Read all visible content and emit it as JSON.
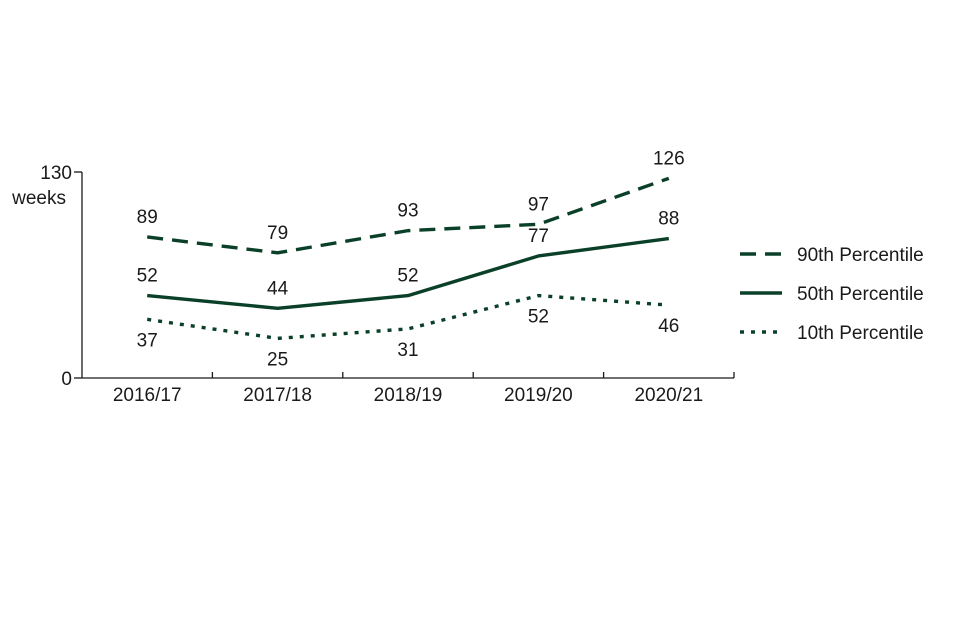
{
  "chart_data": {
    "type": "line",
    "x": [
      "2016/17",
      "2017/18",
      "2018/19",
      "2019/20",
      "2020/21"
    ],
    "y_ticks": [
      0,
      130
    ],
    "y_unit_label": "weeks",
    "ylim": [
      0,
      130
    ],
    "grid": false,
    "legend_position": "right",
    "series": [
      {
        "name": "90th Percentile",
        "style": "dashed",
        "color": "#0b4028",
        "values": [
          89,
          79,
          93,
          97,
          126
        ],
        "label_position": "above"
      },
      {
        "name": "50th Percentile",
        "style": "solid",
        "color": "#0b4028",
        "values": [
          52,
          44,
          52,
          77,
          88
        ],
        "label_position": "above"
      },
      {
        "name": "10th Percentile",
        "style": "dotted",
        "color": "#0b4028",
        "values": [
          37,
          25,
          31,
          52,
          46
        ],
        "label_position": "below"
      }
    ]
  }
}
